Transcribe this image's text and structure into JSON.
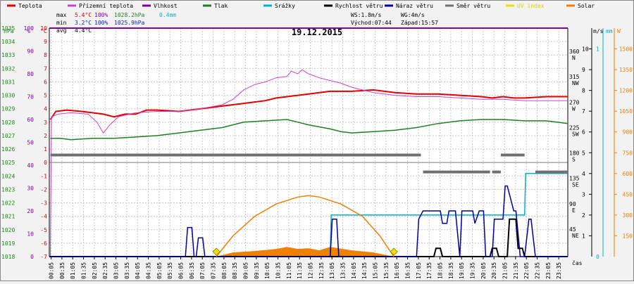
{
  "chart_data": {
    "type": "line",
    "title": "19.12.2015",
    "legend": [
      {
        "name": "Teplota",
        "color": "#e00000"
      },
      {
        "name": "Přízemní teplota",
        "color": "#d040d0"
      },
      {
        "name": "Vlhkost",
        "color": "#8000a0"
      },
      {
        "name": "Tlak",
        "color": "#208020"
      },
      {
        "name": "Srážky",
        "color": "#00b0d0"
      },
      {
        "name": "Rychlost větru",
        "color": "#000000"
      },
      {
        "name": "Náraz větru",
        "color": "#0000a0"
      },
      {
        "name": "Směr větru",
        "color": "#707070"
      },
      {
        "name": "UV index",
        "color": "#f0e000"
      },
      {
        "name": "Solar",
        "color": "#f08000"
      }
    ],
    "stats": {
      "max": {
        "label": "max",
        "temp": "5.4°C",
        "hum": "100%",
        "press": "1028.2hPa",
        "rain": "0.4mm"
      },
      "min": {
        "label": "min",
        "temp": "3.2°C",
        "hum": "100%",
        "press": "1025.9hPa"
      },
      "avg": {
        "label": "avg",
        "temp": "4.4°C"
      }
    },
    "wind": {
      "ws": "WS:1.8m/s",
      "wg": "WG:4m/s",
      "sunrise": "Východ:07:44",
      "sunset": "Západ:15:57"
    },
    "axes": {
      "left_units": [
        "hPa",
        "%",
        "°C"
      ],
      "right_units": [
        "m/s",
        "mm",
        "W"
      ],
      "time_label": "čas",
      "pressure_ticks": [
        "1035",
        "1034",
        "1033",
        "1032",
        "1031",
        "1030",
        "1029",
        "1028",
        "1027",
        "1026",
        "1025",
        "1024",
        "1023",
        "1022",
        "1021",
        "1020",
        "1019",
        "1018"
      ],
      "humidity_ticks": [
        "100",
        "90",
        "80",
        "70",
        "60",
        "50",
        "40",
        "30",
        "20",
        "10",
        "0"
      ],
      "temp_ticks": [
        "10",
        "9",
        "8",
        "7",
        "6",
        "5",
        "4",
        "3",
        "2",
        "1",
        "0",
        "-1",
        "-2",
        "-3",
        "-4",
        "-5",
        "-6",
        "-7"
      ],
      "dir_ticks": [
        {
          "deg": "360",
          "dir": "N"
        },
        {
          "deg": "315",
          "dir": "NW"
        },
        {
          "deg": "270",
          "dir": "W"
        },
        {
          "deg": "225",
          "dir": "SW"
        },
        {
          "deg": "180",
          "dir": "S"
        },
        {
          "deg": "135",
          "dir": "SE"
        },
        {
          "deg": "90",
          "dir": "E"
        },
        {
          "deg": "45",
          "dir": "NE"
        }
      ],
      "wind_ticks": [
        "10",
        "9",
        "8",
        "7",
        "6",
        "5",
        "4",
        "3",
        "2",
        "1"
      ],
      "rain_ticks": [
        "1",
        "0"
      ],
      "solar_ticks": [
        "1500",
        "1350",
        "1200",
        "1050",
        "900",
        "750",
        "600",
        "450",
        "300",
        "150"
      ],
      "time_ticks": [
        "00:05",
        "00:35",
        "01:05",
        "01:35",
        "02:05",
        "02:35",
        "03:05",
        "03:35",
        "04:05",
        "04:35",
        "05:05",
        "05:35",
        "06:05",
        "06:35",
        "07:05",
        "07:35",
        "08:05",
        "08:35",
        "09:05",
        "09:35",
        "10:05",
        "10:35",
        "11:05",
        "11:35",
        "12:05",
        "12:35",
        "13:05",
        "13:35",
        "14:05",
        "14:35",
        "15:05",
        "15:35",
        "16:05",
        "16:35",
        "17:05",
        "17:35",
        "18:05",
        "18:35",
        "19:05",
        "19:35",
        "20:05",
        "20:35",
        "21:05",
        "21:35",
        "22:05",
        "22:35",
        "23:05",
        "23:35"
      ]
    },
    "ranges": {
      "pressure": [
        1018,
        1035
      ],
      "humidity": [
        0,
        100
      ],
      "temp": [
        -7,
        10
      ],
      "dir": [
        0,
        405
      ],
      "wind": [
        0,
        11
      ],
      "rain": [
        0,
        1.1
      ],
      "solar": [
        0,
        1650
      ],
      "time_hours": [
        0,
        24
      ]
    },
    "series": [
      {
        "name": "Teplota",
        "unit": "°C",
        "x": [
          0.05,
          0.3,
          0.8,
          1.5,
          2.0,
          2.5,
          3.0,
          3.5,
          4.0,
          4.5,
          5.0,
          6.0,
          7.0,
          8.0,
          9.0,
          9.5,
          10.0,
          10.5,
          11.0,
          11.5,
          12.0,
          12.5,
          13.0,
          14.0,
          15.0,
          16.0,
          17.0,
          18.0,
          19.0,
          20.0,
          20.5,
          21.0,
          21.5,
          22.0,
          23.0,
          24.0
        ],
        "y": [
          3.2,
          3.8,
          3.9,
          3.8,
          3.7,
          3.6,
          3.4,
          3.6,
          3.6,
          3.9,
          3.9,
          3.8,
          4.0,
          4.2,
          4.4,
          4.5,
          4.6,
          4.8,
          4.9,
          5.0,
          5.1,
          5.2,
          5.3,
          5.3,
          5.4,
          5.2,
          5.1,
          5.1,
          5.0,
          4.9,
          4.8,
          4.9,
          4.8,
          4.8,
          4.9,
          4.9
        ]
      },
      {
        "name": "Přízemní teplota",
        "unit": "°C",
        "x": [
          0.05,
          0.1,
          0.4,
          1.0,
          1.8,
          2.2,
          2.5,
          2.8,
          3.2,
          4.0,
          5.0,
          6.0,
          7.0,
          8.0,
          8.5,
          9.0,
          9.5,
          10.0,
          10.5,
          11.0,
          11.2,
          11.5,
          11.7,
          12.0,
          12.5,
          13.0,
          13.5,
          14.0,
          15.0,
          16.0,
          17.0,
          18.0,
          19.0,
          20.0,
          21.0,
          22.0,
          23.0,
          24.0
        ],
        "y": [
          -7.0,
          3.4,
          3.6,
          3.7,
          3.6,
          3.0,
          2.2,
          2.8,
          3.4,
          3.7,
          3.8,
          3.8,
          4.0,
          4.3,
          4.7,
          5.4,
          5.8,
          6.0,
          6.3,
          6.4,
          6.8,
          6.6,
          6.9,
          6.6,
          6.3,
          6.1,
          5.9,
          5.6,
          5.2,
          5.0,
          4.9,
          4.9,
          4.8,
          4.7,
          4.7,
          4.6,
          4.6,
          4.6
        ]
      },
      {
        "name": "Vlhkost",
        "unit": "%",
        "x": [
          0,
          24
        ],
        "y": [
          100,
          100
        ]
      },
      {
        "name": "Tlak",
        "unit": "hPa",
        "x": [
          0.05,
          0.5,
          1.0,
          2.0,
          3.0,
          4.0,
          5.0,
          6.0,
          7.0,
          8.0,
          9.0,
          10.0,
          11.0,
          11.5,
          12.0,
          13.0,
          13.5,
          14.0,
          15.0,
          16.0,
          17.0,
          18.0,
          19.0,
          20.0,
          21.0,
          22.0,
          23.0,
          23.5,
          24.0
        ],
        "y": [
          1026.8,
          1026.8,
          1026.7,
          1026.8,
          1026.8,
          1026.9,
          1027.0,
          1027.2,
          1027.4,
          1027.6,
          1028.0,
          1028.1,
          1028.2,
          1028.0,
          1027.8,
          1027.5,
          1027.3,
          1027.2,
          1027.3,
          1027.4,
          1027.6,
          1027.9,
          1028.1,
          1028.2,
          1028.2,
          1028.1,
          1028.1,
          1028.0,
          1027.9
        ]
      },
      {
        "name": "Srážky",
        "unit": "mm",
        "x": [
          0,
          13.0,
          13.05,
          22.0,
          22.05,
          24.0
        ],
        "y": [
          0,
          0,
          0.2,
          0.2,
          0.4,
          0.4
        ]
      },
      {
        "name": "Rychlost větru",
        "unit": "m/s",
        "x": [
          0,
          17.8,
          17.9,
          18.1,
          18.2,
          19.0,
          20.4,
          20.5,
          20.7,
          20.8,
          21.2,
          21.3,
          21.6,
          21.7,
          21.9,
          22.0,
          24.0
        ],
        "y": [
          0,
          0,
          0.4,
          0.4,
          0,
          0,
          0,
          0.4,
          0.4,
          0,
          0,
          1.8,
          1.8,
          0.4,
          0.4,
          0,
          0
        ]
      },
      {
        "name": "Náraz větru",
        "unit": "m/s",
        "x": [
          0,
          6.3,
          6.4,
          6.6,
          6.7,
          6.8,
          6.9,
          7.1,
          7.2,
          13.0,
          13.1,
          13.3,
          13.4,
          17.0,
          17.1,
          17.3,
          18.1,
          18.2,
          18.4,
          18.5,
          18.8,
          19.0,
          19.1,
          19.6,
          19.7,
          19.9,
          20.1,
          20.2,
          20.5,
          20.6,
          20.7,
          21.0,
          21.1,
          21.2,
          21.5,
          21.6,
          21.8,
          22.0,
          22.2,
          22.3,
          22.5,
          22.6,
          24.0
        ],
        "y": [
          0,
          0,
          1.4,
          1.4,
          0,
          0,
          0.9,
          0.9,
          0,
          0,
          1.8,
          1.8,
          0,
          0,
          1.8,
          2.2,
          2.2,
          1.6,
          1.6,
          2.2,
          2.2,
          0,
          2.2,
          2.2,
          1.6,
          2.2,
          2.2,
          0,
          0,
          1.8,
          1.8,
          1.8,
          3.4,
          3.4,
          2.2,
          2.2,
          0,
          0,
          1.8,
          1.8,
          0,
          0,
          0
        ]
      },
      {
        "name": "Směr větru",
        "unit": "°",
        "x": [
          0.05,
          17.2,
          17.3,
          19.5,
          19.5,
          20.4,
          20.5,
          20.9,
          20.9,
          22.0,
          22.5,
          24.0
        ],
        "y": [
          180,
          180,
          150,
          150,
          150,
          150,
          150,
          150,
          180,
          180,
          150,
          150
        ]
      },
      {
        "name": "Solar",
        "unit": "W",
        "x": [
          7.73,
          8.5,
          9.5,
          10.5,
          11.5,
          12.0,
          12.5,
          13.5,
          14.5,
          15.3,
          15.95
        ],
        "y": [
          0,
          150,
          290,
          380,
          430,
          440,
          430,
          380,
          290,
          150,
          0
        ]
      }
    ],
    "solar_measured": {
      "x": [
        7.73,
        8.5,
        9.5,
        10.5,
        11.0,
        11.5,
        12.0,
        12.5,
        13.0,
        14.0,
        15.0,
        15.95
      ],
      "y": [
        0,
        30,
        40,
        55,
        70,
        55,
        60,
        45,
        70,
        45,
        30,
        0
      ]
    },
    "sun_markers": [
      "07:44",
      "15:57"
    ],
    "grid": true,
    "legend_position": "top"
  }
}
